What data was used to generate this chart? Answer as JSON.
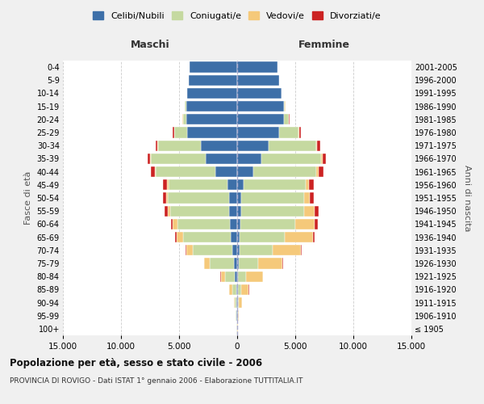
{
  "age_groups": [
    "100+",
    "95-99",
    "90-94",
    "85-89",
    "80-84",
    "75-79",
    "70-74",
    "65-69",
    "60-64",
    "55-59",
    "50-54",
    "45-49",
    "40-44",
    "35-39",
    "30-34",
    "25-29",
    "20-24",
    "15-19",
    "10-14",
    "5-9",
    "0-4"
  ],
  "birth_years": [
    "≤ 1905",
    "1906-1910",
    "1911-1915",
    "1916-1920",
    "1921-1925",
    "1926-1930",
    "1931-1935",
    "1936-1940",
    "1941-1945",
    "1946-1950",
    "1951-1955",
    "1956-1960",
    "1961-1965",
    "1966-1970",
    "1971-1975",
    "1976-1980",
    "1981-1985",
    "1986-1990",
    "1991-1995",
    "1996-2000",
    "2001-2005"
  ],
  "male": {
    "single": [
      20,
      50,
      70,
      100,
      180,
      250,
      420,
      550,
      650,
      680,
      680,
      820,
      1900,
      2700,
      3100,
      4300,
      4400,
      4400,
      4300,
      4200,
      4100
    ],
    "married": [
      15,
      55,
      130,
      350,
      850,
      2100,
      3400,
      4100,
      4500,
      5100,
      5300,
      5100,
      5100,
      4700,
      3700,
      1100,
      280,
      80,
      0,
      0,
      0
    ],
    "widowed": [
      8,
      35,
      90,
      230,
      380,
      480,
      580,
      580,
      380,
      180,
      130,
      110,
      90,
      70,
      50,
      40,
      15,
      8,
      0,
      0,
      0
    ],
    "divorced": [
      3,
      8,
      15,
      25,
      35,
      45,
      70,
      130,
      180,
      280,
      280,
      330,
      330,
      260,
      190,
      90,
      25,
      8,
      0,
      0,
      0
    ]
  },
  "female": {
    "single": [
      15,
      35,
      50,
      70,
      90,
      110,
      180,
      230,
      280,
      330,
      380,
      570,
      1400,
      2100,
      2700,
      3600,
      4000,
      4000,
      3800,
      3600,
      3500
    ],
    "married": [
      8,
      40,
      90,
      270,
      650,
      1700,
      2900,
      3900,
      4700,
      5400,
      5400,
      5300,
      5400,
      5100,
      4100,
      1700,
      450,
      130,
      8,
      0,
      0
    ],
    "widowed": [
      18,
      75,
      280,
      660,
      1450,
      2100,
      2400,
      2400,
      1700,
      950,
      470,
      280,
      230,
      140,
      90,
      70,
      25,
      8,
      0,
      0,
      0
    ],
    "divorced": [
      3,
      8,
      15,
      25,
      45,
      70,
      90,
      130,
      230,
      330,
      380,
      430,
      430,
      330,
      230,
      130,
      45,
      15,
      0,
      0,
      0
    ]
  },
  "colors": {
    "single": "#3d6fa8",
    "married": "#c5d9a0",
    "widowed": "#f5c97a",
    "divorced": "#cc2222"
  },
  "xlim": 15000,
  "xticks": [
    -15000,
    -10000,
    -5000,
    0,
    5000,
    10000,
    15000
  ],
  "xticklabels": [
    "15.000",
    "10.000",
    "5.000",
    "0",
    "5.000",
    "10.000",
    "15.000"
  ],
  "title": "Popolazione per età, sesso e stato civile - 2006",
  "subtitle": "PROVINCIA DI ROVIGO - Dati ISTAT 1° gennaio 2006 - Elaborazione TUTTITALIA.IT",
  "ylabel_left": "Fasce di età",
  "ylabel_right": "Anni di nascita",
  "legend_labels": [
    "Celibi/Nubili",
    "Coniugati/e",
    "Vedovi/e",
    "Divorziati/e"
  ],
  "maschi_label": "Maschi",
  "femmine_label": "Femmine",
  "bg_color": "#f0f0f0",
  "plot_bg_color": "#ffffff"
}
